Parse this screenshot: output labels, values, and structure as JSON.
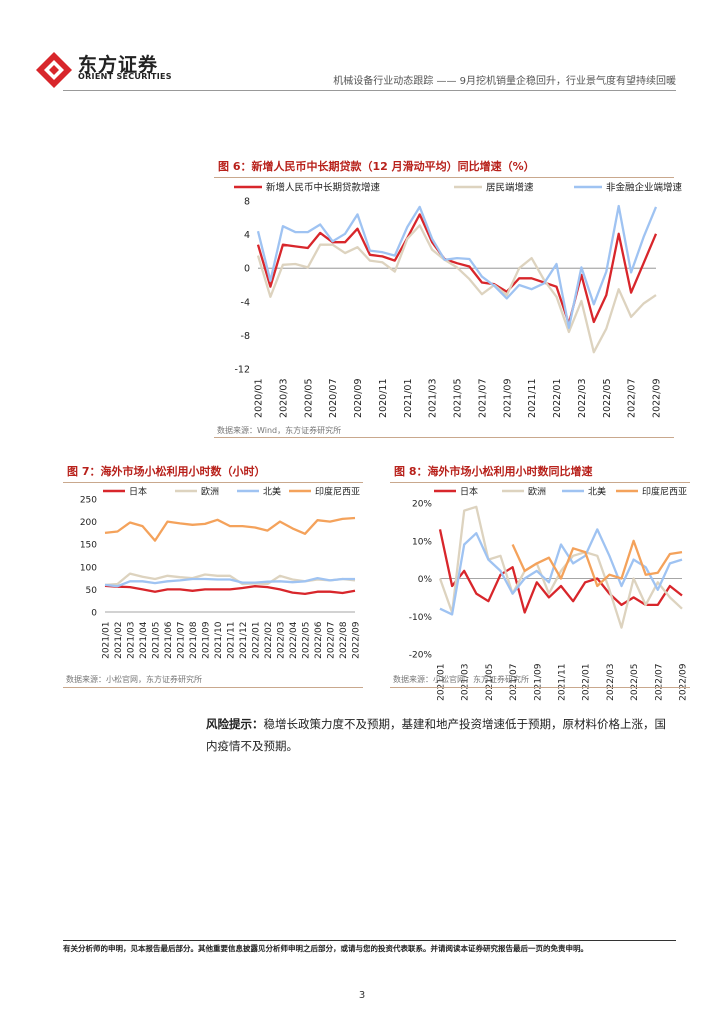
{
  "header": {
    "brand_cn": "东方证券",
    "brand_en": "ORIENT SECURITIES",
    "title": "机械设备行业动态跟踪 —— 9月挖机销量企稳回升，行业景气度有望持续回暖"
  },
  "fig6": {
    "title": "图 6：新增人民币中长期贷款（12 月滑动平均）同比增速（%）",
    "source": "数据来源：Wind，东方证券研究所"
  },
  "fig7": {
    "title": "图 7：海外市场小松利用小时数（小时）",
    "source": "数据来源：小松官网，东方证券研究所"
  },
  "fig8": {
    "title": "图 8：海外市场小松利用小时数同比增速",
    "source": "数据来源：小松官网，东方证券研究所"
  },
  "risk": {
    "label": "风险提示：",
    "text": "稳增长政策力度不及预期，基建和地产投资增速低于预期，原材料价格上涨，国内疫情不及预期。"
  },
  "footer": {
    "disclaimer": "有关分析师的申明，见本报告最后部分。其他重要信息披露见分析师申明之后部分，或请与您的投资代表联系。并请阅读本证券研究报告最后一页的免责申明。",
    "page": "3"
  },
  "colors": {
    "red": "#d8262b",
    "beige": "#ddd3bf",
    "blue": "#9fc3f2",
    "orange": "#f4a25b",
    "accent": "#b8211b"
  },
  "chart_data": [
    {
      "type": "line",
      "x": [
        "2020/01",
        "2020/02",
        "2020/03",
        "2020/04",
        "2020/05",
        "2020/06",
        "2020/07",
        "2020/08",
        "2020/09",
        "2020/10",
        "2020/11",
        "2020/12",
        "2021/01",
        "2021/02",
        "2021/03",
        "2021/04",
        "2021/05",
        "2021/06",
        "2021/07",
        "2021/08",
        "2021/09",
        "2021/10",
        "2021/11",
        "2021/12",
        "2022/01",
        "2022/02",
        "2022/03",
        "2022/04",
        "2022/05",
        "2022/06",
        "2022/07",
        "2022/08",
        "2022/09"
      ],
      "tick_labels": [
        "2020/01",
        "2020/03",
        "2020/05",
        "2020/07",
        "2020/09",
        "2020/11",
        "2021/01",
        "2021/03",
        "2021/05",
        "2021/07",
        "2021/09",
        "2021/11",
        "2022/01",
        "2022/03",
        "2022/05",
        "2022/07",
        "2022/09"
      ],
      "series": [
        {
          "name": "新增人民币中长期贷款增速",
          "color": "#d8262b",
          "values": [
            2.8,
            -2.2,
            2.8,
            2.6,
            2.4,
            4.2,
            3.1,
            3.1,
            4.7,
            1.6,
            1.4,
            0.9,
            3.6,
            6.4,
            3.1,
            1.1,
            0.6,
            0.2,
            -1.7,
            -1.9,
            -2.8,
            -1.2,
            -1.2,
            -1.7,
            -2.2,
            -6.6,
            -0.8,
            -6.4,
            -3.2,
            4.1,
            -2.9,
            0.6,
            4.1
          ]
        },
        {
          "name": "居民端增速",
          "color": "#ddd3bf",
          "values": [
            1.5,
            -3.4,
            0.4,
            0.5,
            0.1,
            2.8,
            2.8,
            1.8,
            2.5,
            0.9,
            0.7,
            -0.4,
            3.5,
            5.1,
            2.2,
            1.0,
            0.1,
            -1.3,
            -3.1,
            -2.0,
            -3.2,
            0.0,
            1.2,
            -1.4,
            -3.4,
            -7.6,
            -3.9,
            -10.0,
            -7.2,
            -2.5,
            -5.8,
            -4.2,
            -3.2
          ]
        },
        {
          "name": "非金融企业端增速",
          "color": "#9fc3f2",
          "values": [
            4.4,
            -1.5,
            5.0,
            4.3,
            4.3,
            5.2,
            3.2,
            4.1,
            6.4,
            2.1,
            1.9,
            1.5,
            4.9,
            7.3,
            3.5,
            1.0,
            1.2,
            1.1,
            -1.0,
            -2.1,
            -3.6,
            -2.0,
            -2.5,
            -1.8,
            0.5,
            -7.1,
            0.1,
            -4.3,
            -0.4,
            7.4,
            -0.5,
            3.7,
            7.3
          ]
        }
      ],
      "ylim": [
        -12,
        8
      ],
      "yticks": [
        -12,
        -8,
        -4,
        0,
        4,
        8
      ],
      "legend": "top"
    },
    {
      "type": "line",
      "x": [
        "2021/01",
        "2021/02",
        "2021/03",
        "2021/04",
        "2021/05",
        "2021/06",
        "2021/07",
        "2021/08",
        "2021/09",
        "2021/10",
        "2021/11",
        "2021/12",
        "2022/01",
        "2022/02",
        "2022/03",
        "2022/04",
        "2022/05",
        "2022/06",
        "2022/07",
        "2022/08",
        "2022/09"
      ],
      "series": [
        {
          "name": "日本",
          "color": "#d8262b",
          "values": [
            58,
            56,
            55,
            50,
            45,
            50,
            50,
            47,
            50,
            50,
            50,
            53,
            57,
            55,
            50,
            43,
            40,
            45,
            45,
            42,
            47
          ]
        },
        {
          "name": "欧洲",
          "color": "#ddd3bf",
          "values": [
            60,
            62,
            85,
            78,
            73,
            80,
            77,
            75,
            83,
            80,
            80,
            62,
            63,
            62,
            80,
            72,
            68,
            72,
            70,
            73,
            70
          ]
        },
        {
          "name": "北美",
          "color": "#9fc3f2",
          "values": [
            60,
            57,
            68,
            68,
            64,
            68,
            70,
            73,
            73,
            72,
            72,
            65,
            65,
            67,
            68,
            66,
            68,
            75,
            70,
            73,
            73
          ]
        },
        {
          "name": "印度尼西亚",
          "color": "#f4a25b",
          "values": [
            175,
            178,
            198,
            190,
            158,
            200,
            196,
            193,
            195,
            204,
            190,
            190,
            187,
            180,
            200,
            185,
            173,
            203,
            200,
            206,
            208
          ]
        }
      ],
      "ylim": [
        0,
        250
      ],
      "yticks": [
        0,
        50,
        100,
        150,
        200,
        250
      ],
      "legend": "top"
    },
    {
      "type": "line",
      "x": [
        "2021/01",
        "2021/02",
        "2021/03",
        "2021/04",
        "2021/05",
        "2021/06",
        "2021/07",
        "2021/08",
        "2021/09",
        "2021/10",
        "2021/11",
        "2021/12",
        "2022/01",
        "2022/02",
        "2022/03",
        "2022/04",
        "2022/05",
        "2022/06",
        "2022/07",
        "2022/08",
        "2022/09"
      ],
      "tick_labels": [
        "2021/01",
        "2021/03",
        "2021/05",
        "2021/07",
        "2021/09",
        "2021/11",
        "2022/01",
        "2022/03",
        "2022/05",
        "2022/07",
        "2022/09"
      ],
      "series": [
        {
          "name": "日本",
          "color": "#d8262b",
          "values": [
            13,
            -2,
            2,
            -4,
            -6,
            1,
            3,
            -9,
            -1,
            -5,
            -2,
            -6,
            -1,
            0,
            -4,
            -7,
            -5,
            -7,
            -7,
            -2,
            -4.5
          ]
        },
        {
          "name": "欧洲",
          "color": "#ddd3bf",
          "values": [
            0,
            -9,
            18,
            19,
            5,
            6,
            -4,
            2,
            4,
            -4,
            2,
            6,
            7,
            6,
            -3,
            -13,
            0,
            -7,
            -1,
            -5,
            -8
          ]
        },
        {
          "name": "北美",
          "color": "#9fc3f2",
          "values": [
            -8,
            -9.5,
            9,
            12,
            5,
            2,
            -4,
            0,
            2,
            -1,
            9,
            4,
            6,
            13,
            6,
            -2,
            5,
            3,
            -3,
            4,
            5
          ]
        },
        {
          "name": "印度尼西亚",
          "color": "#f4a25b",
          "values": [
            null,
            null,
            null,
            null,
            null,
            null,
            9,
            2,
            4,
            5.5,
            0,
            8,
            7,
            -2,
            1,
            0,
            10,
            1,
            1.5,
            6.5,
            7
          ]
        }
      ],
      "ylim": [
        -20,
        20
      ],
      "yticks": [
        -20,
        -10,
        0,
        10,
        20
      ],
      "ytick_labels": [
        "-20%",
        "-10%",
        "0%",
        "10%",
        "20%"
      ],
      "legend": "top"
    }
  ]
}
